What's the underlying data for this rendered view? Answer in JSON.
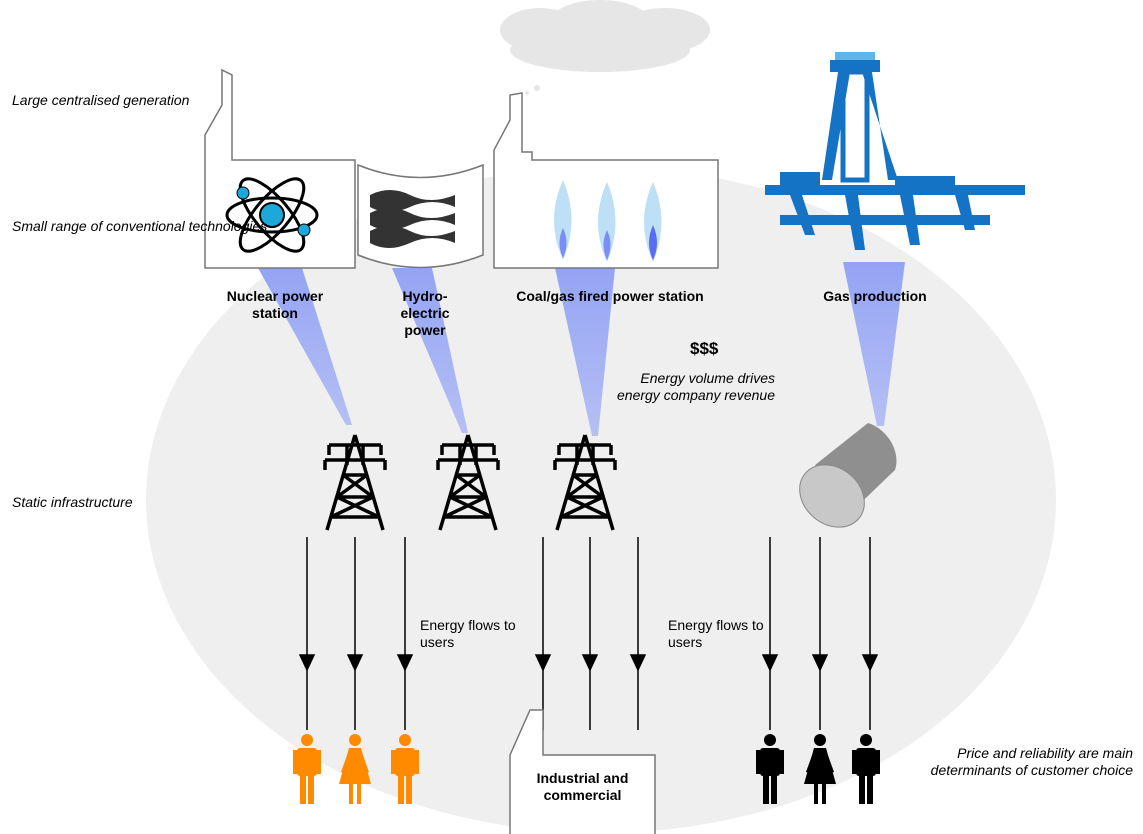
{
  "labels": [
    "Large centralised generation",
    "Small range of conventional technologies",
    "Static infrastructure"
  ],
  "sources": [
    "Nuclear power station",
    "Hydro-electric power",
    "Coal/gas fired power station",
    "Gas production"
  ],
  "revenue": {
    "symbol": "$$$",
    "note": "Energy volume drives energy company revenue"
  },
  "flows": [
    "Energy flows to users",
    "Energy flows to users"
  ],
  "industrial": "Industrial and commercial",
  "customer_note": "Price and reliability are main determinants of customer choice"
}
